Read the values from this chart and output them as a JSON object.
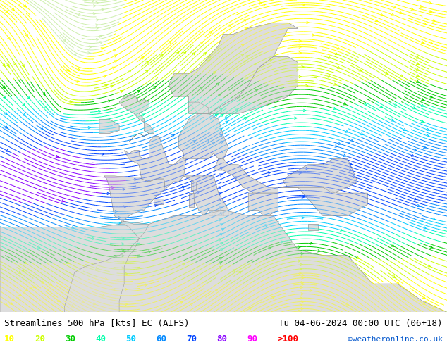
{
  "title_left": "Streamlines 500 hPa [kts] EC (AIFS)",
  "title_right": "Tu 04-06-2024 00:00 UTC (06+18)",
  "credit": "©weatheronline.co.uk",
  "legend_values": [
    "10",
    "20",
    "30",
    "40",
    "50",
    "60",
    "70",
    "80",
    "90",
    ">100"
  ],
  "legend_colors_rgb": [
    "#ffff00",
    "#ccff00",
    "#00cc00",
    "#00ffaa",
    "#00ccff",
    "#0088ff",
    "#0044ff",
    "#8800ff",
    "#ff00ff",
    "#ff0000"
  ],
  "figsize": [
    6.34,
    4.9
  ],
  "dpi": 100,
  "map_bg_color": "#cceeaa",
  "land_color": "#dddddd",
  "sea_color": "#cceeaa",
  "border_color": "#888888",
  "bottom_bar_color": "#ffffff",
  "title_fontsize": 9,
  "legend_fontsize": 9,
  "credit_fontsize": 8,
  "speed_colors": [
    "#cceeaa",
    "#ffff00",
    "#ccff00",
    "#00cc00",
    "#00ffaa",
    "#00ccff",
    "#0088ff",
    "#0044ff",
    "#8800ff",
    "#ff00ff",
    "#ff0000"
  ],
  "speed_bounds": [
    0,
    10,
    20,
    30,
    40,
    50,
    60,
    70,
    80,
    90,
    100,
    300
  ]
}
